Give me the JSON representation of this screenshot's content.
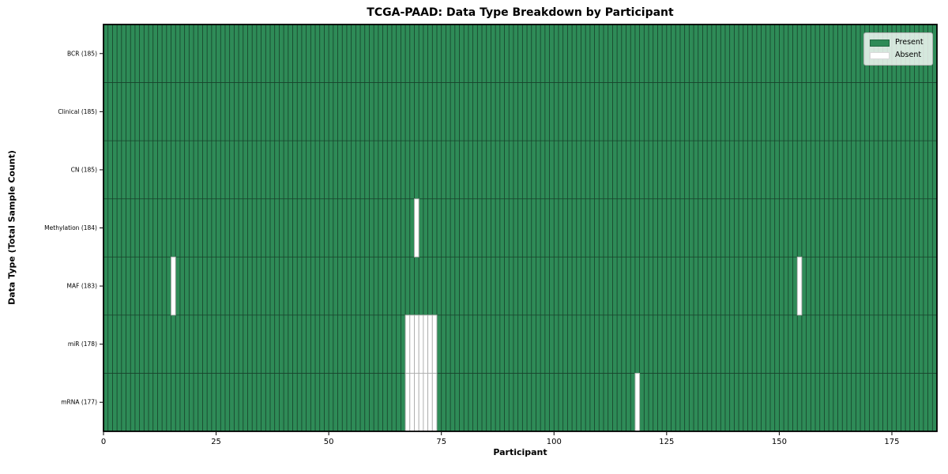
{
  "chart_data": {
    "type": "heatmap",
    "title": "TCGA-PAAD: Data Type Breakdown by Participant",
    "xlabel": "Participant",
    "ylabel": "Data Type (Total Sample Count)",
    "x_range": [
      0,
      185
    ],
    "n_participants": 185,
    "xticks": [
      0,
      25,
      50,
      75,
      100,
      125,
      150,
      175
    ],
    "grid": "cell-edges",
    "legend_position": "upper right",
    "rows": [
      {
        "label": "BCR (185)",
        "data_type": "BCR",
        "present_count": 185,
        "absent_participants": []
      },
      {
        "label": "Clinical (185)",
        "data_type": "Clinical",
        "present_count": 185,
        "absent_participants": []
      },
      {
        "label": "CN (185)",
        "data_type": "CN",
        "present_count": 185,
        "absent_participants": []
      },
      {
        "label": "Methylation (184)",
        "data_type": "Methylation",
        "present_count": 184,
        "absent_participants": [
          69
        ]
      },
      {
        "label": "MAF (183)",
        "data_type": "MAF",
        "present_count": 183,
        "absent_participants": [
          15,
          154
        ]
      },
      {
        "label": "miR (178)",
        "data_type": "miR",
        "present_count": 178,
        "absent_participants": [
          67,
          68,
          69,
          70,
          71,
          72,
          73
        ]
      },
      {
        "label": "mRNA (177)",
        "data_type": "mRNA",
        "present_count": 177,
        "absent_participants": [
          67,
          68,
          69,
          70,
          71,
          72,
          73,
          118
        ]
      }
    ],
    "legend": [
      {
        "label": "Present",
        "color": "#2E8B57"
      },
      {
        "label": "Absent",
        "color": "#ffffff"
      }
    ],
    "colors": {
      "present": "#2E8B57",
      "absent": "#ffffff",
      "cell_edge_present": "#17402a",
      "cell_edge_absent": "#ababab",
      "spine": "#000000",
      "tick_label": "#000000"
    }
  }
}
